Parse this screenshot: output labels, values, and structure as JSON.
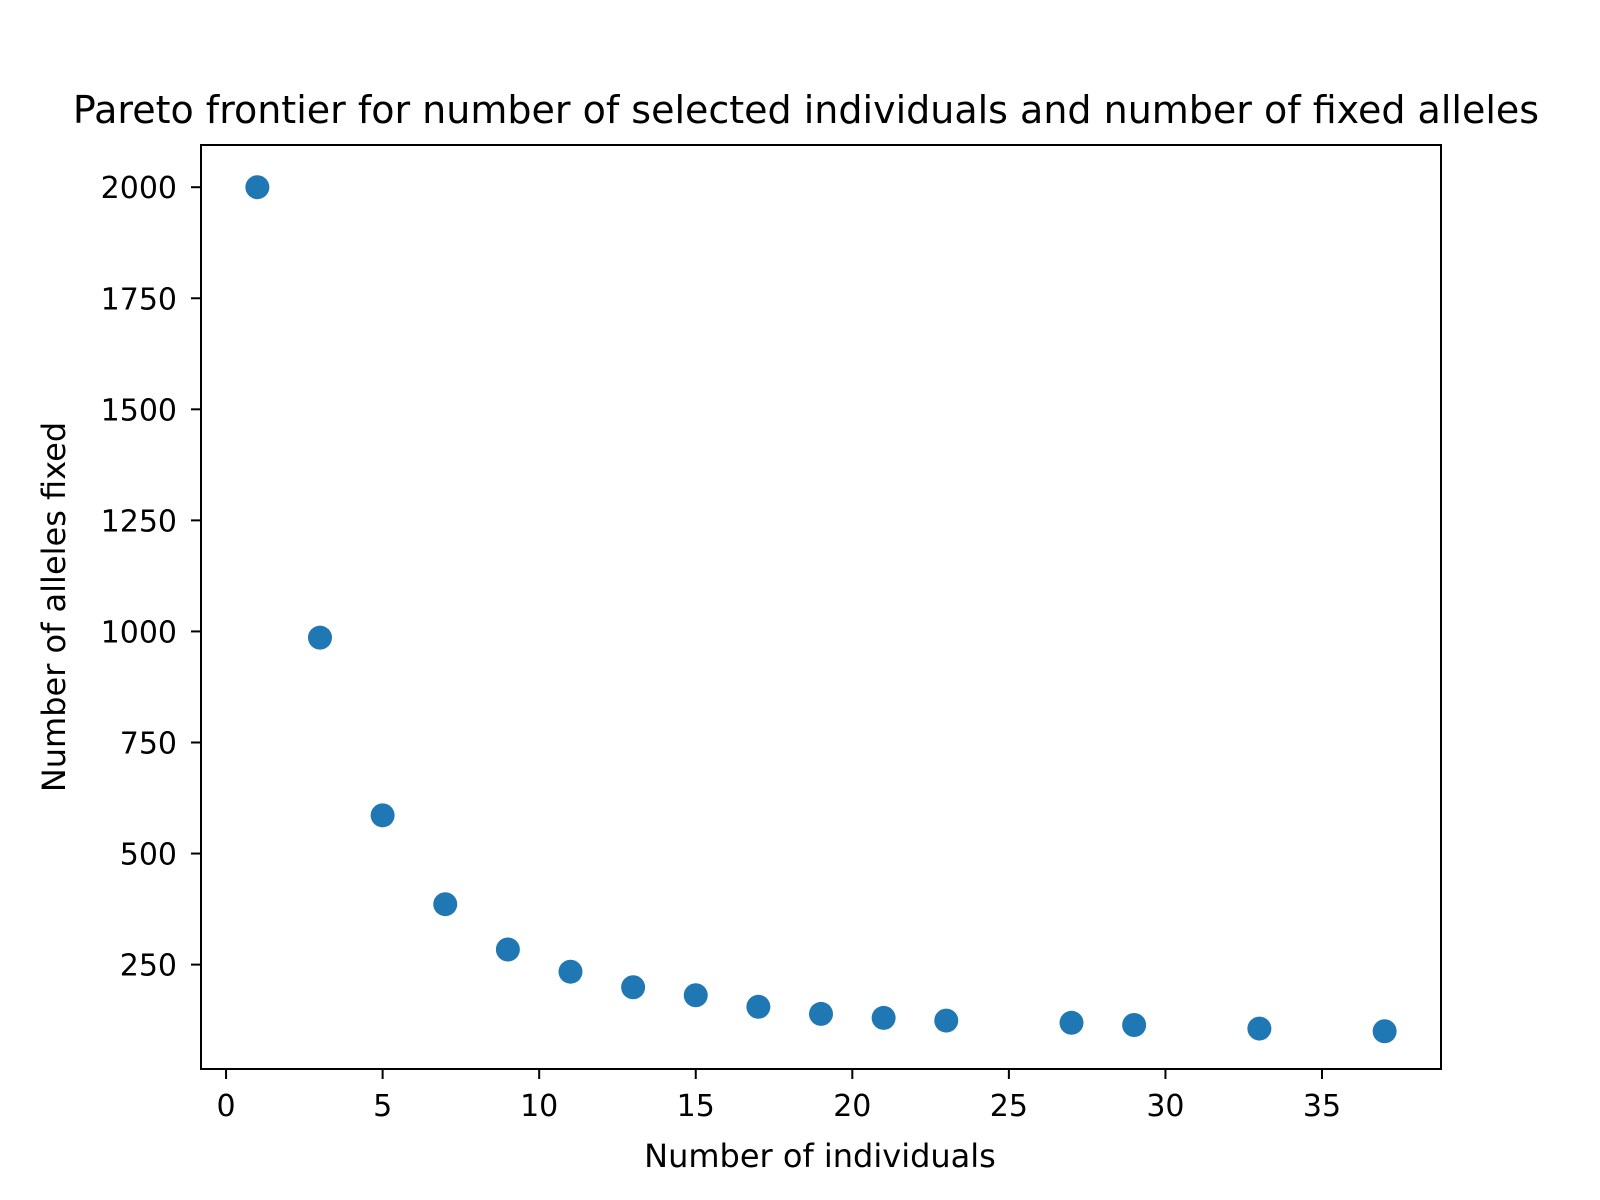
{
  "chart_data": {
    "type": "scatter",
    "title": "Pareto frontier for number of selected individuals and number of fixed alleles",
    "xlabel": "Number of individuals",
    "ylabel": "Number of alleles fixed",
    "xlim": [
      -0.8,
      38.8
    ],
    "ylim": [
      15,
      2095
    ],
    "xticks": [
      0,
      5,
      10,
      15,
      20,
      25,
      30,
      35
    ],
    "yticks": [
      250,
      500,
      750,
      1000,
      1250,
      1500,
      1750,
      2000
    ],
    "grid": false,
    "marker_color": "#1f77b4",
    "points": [
      {
        "x": 1,
        "y": 2000
      },
      {
        "x": 3,
        "y": 986
      },
      {
        "x": 5,
        "y": 586
      },
      {
        "x": 7,
        "y": 386
      },
      {
        "x": 9,
        "y": 284
      },
      {
        "x": 11,
        "y": 234
      },
      {
        "x": 13,
        "y": 199
      },
      {
        "x": 15,
        "y": 181
      },
      {
        "x": 17,
        "y": 155
      },
      {
        "x": 19,
        "y": 139
      },
      {
        "x": 21,
        "y": 130
      },
      {
        "x": 23,
        "y": 124
      },
      {
        "x": 27,
        "y": 119
      },
      {
        "x": 29,
        "y": 114
      },
      {
        "x": 33,
        "y": 106
      },
      {
        "x": 37,
        "y": 100
      }
    ]
  }
}
